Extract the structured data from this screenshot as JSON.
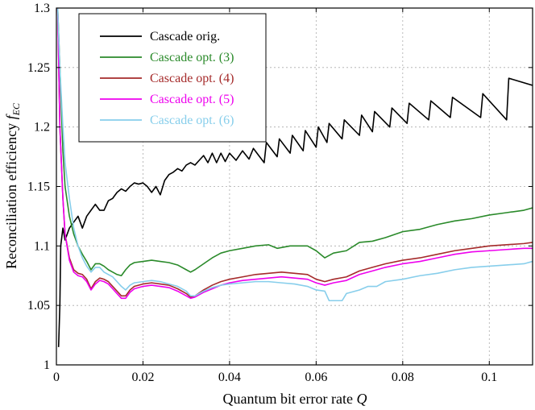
{
  "chart_data": {
    "type": "line",
    "title": "",
    "xlabel": "Quantum bit error rate",
    "xlabel_var": "Q",
    "ylabel": "Reconciliation efficiency",
    "ylabel_var": "f",
    "ylabel_sub": "EC",
    "xlim": [
      0,
      0.11
    ],
    "ylim": [
      1,
      1.3
    ],
    "xticks": [
      0,
      0.02,
      0.04,
      0.06,
      0.08,
      0.1
    ],
    "xtick_labels": [
      "0",
      "0.02",
      "0.04",
      "0.06",
      "0.08",
      "0.1"
    ],
    "yticks": [
      1,
      1.05,
      1.1,
      1.15,
      1.2,
      1.25,
      1.3
    ],
    "ytick_labels": [
      "1",
      "1.05",
      "1.1",
      "1.15",
      "1.2",
      "1.25",
      "1.3"
    ],
    "grid": true,
    "legend_position": "top-left",
    "series": [
      {
        "name": "Cascade orig.",
        "color": "#000000",
        "points": [
          [
            0.0005,
            1.015
          ],
          [
            0.0008,
            1.05
          ],
          [
            0.001,
            1.1
          ],
          [
            0.0015,
            1.115
          ],
          [
            0.002,
            1.105
          ],
          [
            0.003,
            1.115
          ],
          [
            0.004,
            1.12
          ],
          [
            0.005,
            1.125
          ],
          [
            0.006,
            1.115
          ],
          [
            0.007,
            1.125
          ],
          [
            0.008,
            1.13
          ],
          [
            0.009,
            1.135
          ],
          [
            0.01,
            1.13
          ],
          [
            0.011,
            1.13
          ],
          [
            0.012,
            1.138
          ],
          [
            0.013,
            1.14
          ],
          [
            0.014,
            1.145
          ],
          [
            0.015,
            1.148
          ],
          [
            0.016,
            1.146
          ],
          [
            0.017,
            1.15
          ],
          [
            0.018,
            1.153
          ],
          [
            0.019,
            1.152
          ],
          [
            0.02,
            1.153
          ],
          [
            0.021,
            1.15
          ],
          [
            0.022,
            1.145
          ],
          [
            0.023,
            1.15
          ],
          [
            0.024,
            1.143
          ],
          [
            0.025,
            1.155
          ],
          [
            0.026,
            1.16
          ],
          [
            0.027,
            1.162
          ],
          [
            0.028,
            1.165
          ],
          [
            0.029,
            1.163
          ],
          [
            0.03,
            1.168
          ],
          [
            0.031,
            1.17
          ],
          [
            0.032,
            1.168
          ],
          [
            0.033,
            1.172
          ],
          [
            0.034,
            1.176
          ],
          [
            0.035,
            1.17
          ],
          [
            0.036,
            1.178
          ],
          [
            0.037,
            1.17
          ],
          [
            0.038,
            1.178
          ],
          [
            0.039,
            1.171
          ],
          [
            0.04,
            1.178
          ],
          [
            0.0415,
            1.172
          ],
          [
            0.043,
            1.18
          ],
          [
            0.0445,
            1.173
          ],
          [
            0.0455,
            1.182
          ],
          [
            0.048,
            1.17
          ],
          [
            0.0485,
            1.187
          ],
          [
            0.051,
            1.175
          ],
          [
            0.0515,
            1.19
          ],
          [
            0.054,
            1.178
          ],
          [
            0.0545,
            1.193
          ],
          [
            0.057,
            1.18
          ],
          [
            0.0575,
            1.197
          ],
          [
            0.06,
            1.183
          ],
          [
            0.0605,
            1.2
          ],
          [
            0.0625,
            1.187
          ],
          [
            0.063,
            1.203
          ],
          [
            0.066,
            1.19
          ],
          [
            0.0665,
            1.206
          ],
          [
            0.07,
            1.193
          ],
          [
            0.0705,
            1.21
          ],
          [
            0.073,
            1.196
          ],
          [
            0.0735,
            1.213
          ],
          [
            0.077,
            1.2
          ],
          [
            0.0775,
            1.216
          ],
          [
            0.081,
            1.203
          ],
          [
            0.0815,
            1.22
          ],
          [
            0.086,
            1.206
          ],
          [
            0.0865,
            1.222
          ],
          [
            0.091,
            1.208
          ],
          [
            0.0915,
            1.225
          ],
          [
            0.098,
            1.208
          ],
          [
            0.0985,
            1.228
          ],
          [
            0.104,
            1.206
          ],
          [
            0.1045,
            1.241
          ],
          [
            0.11,
            1.235
          ]
        ]
      },
      {
        "name": "Cascade opt. (3)",
        "color": "#2a8a2a",
        "points": [
          [
            0.0003,
            1.3
          ],
          [
            0.0008,
            1.25
          ],
          [
            0.0015,
            1.18
          ],
          [
            0.002,
            1.15
          ],
          [
            0.003,
            1.125
          ],
          [
            0.004,
            1.11
          ],
          [
            0.005,
            1.1
          ],
          [
            0.006,
            1.093
          ],
          [
            0.007,
            1.087
          ],
          [
            0.008,
            1.08
          ],
          [
            0.009,
            1.085
          ],
          [
            0.01,
            1.085
          ],
          [
            0.011,
            1.083
          ],
          [
            0.012,
            1.08
          ],
          [
            0.013,
            1.078
          ],
          [
            0.014,
            1.076
          ],
          [
            0.015,
            1.075
          ],
          [
            0.016,
            1.08
          ],
          [
            0.017,
            1.084
          ],
          [
            0.018,
            1.086
          ],
          [
            0.02,
            1.087
          ],
          [
            0.022,
            1.088
          ],
          [
            0.024,
            1.087
          ],
          [
            0.026,
            1.086
          ],
          [
            0.028,
            1.084
          ],
          [
            0.03,
            1.08
          ],
          [
            0.031,
            1.078
          ],
          [
            0.032,
            1.08
          ],
          [
            0.034,
            1.085
          ],
          [
            0.036,
            1.09
          ],
          [
            0.038,
            1.094
          ],
          [
            0.04,
            1.096
          ],
          [
            0.043,
            1.098
          ],
          [
            0.046,
            1.1
          ],
          [
            0.049,
            1.101
          ],
          [
            0.051,
            1.098
          ],
          [
            0.054,
            1.1
          ],
          [
            0.058,
            1.1
          ],
          [
            0.06,
            1.096
          ],
          [
            0.062,
            1.09
          ],
          [
            0.064,
            1.094
          ],
          [
            0.067,
            1.096
          ],
          [
            0.07,
            1.103
          ],
          [
            0.073,
            1.104
          ],
          [
            0.076,
            1.107
          ],
          [
            0.08,
            1.112
          ],
          [
            0.084,
            1.114
          ],
          [
            0.088,
            1.118
          ],
          [
            0.092,
            1.121
          ],
          [
            0.096,
            1.123
          ],
          [
            0.1,
            1.126
          ],
          [
            0.104,
            1.128
          ],
          [
            0.108,
            1.13
          ],
          [
            0.11,
            1.132
          ]
        ]
      },
      {
        "name": "Cascade opt. (4)",
        "color": "#a52a2a",
        "points": [
          [
            0.0003,
            1.3
          ],
          [
            0.0008,
            1.2
          ],
          [
            0.0015,
            1.14
          ],
          [
            0.002,
            1.11
          ],
          [
            0.003,
            1.09
          ],
          [
            0.004,
            1.08
          ],
          [
            0.005,
            1.077
          ],
          [
            0.006,
            1.076
          ],
          [
            0.007,
            1.072
          ],
          [
            0.008,
            1.064
          ],
          [
            0.009,
            1.07
          ],
          [
            0.01,
            1.073
          ],
          [
            0.011,
            1.072
          ],
          [
            0.012,
            1.07
          ],
          [
            0.013,
            1.066
          ],
          [
            0.014,
            1.062
          ],
          [
            0.015,
            1.058
          ],
          [
            0.016,
            1.058
          ],
          [
            0.017,
            1.063
          ],
          [
            0.018,
            1.066
          ],
          [
            0.02,
            1.068
          ],
          [
            0.022,
            1.069
          ],
          [
            0.024,
            1.068
          ],
          [
            0.026,
            1.067
          ],
          [
            0.028,
            1.064
          ],
          [
            0.03,
            1.06
          ],
          [
            0.031,
            1.057
          ],
          [
            0.032,
            1.058
          ],
          [
            0.034,
            1.063
          ],
          [
            0.036,
            1.067
          ],
          [
            0.038,
            1.07
          ],
          [
            0.04,
            1.072
          ],
          [
            0.043,
            1.074
          ],
          [
            0.046,
            1.076
          ],
          [
            0.049,
            1.077
          ],
          [
            0.052,
            1.078
          ],
          [
            0.055,
            1.077
          ],
          [
            0.058,
            1.076
          ],
          [
            0.06,
            1.072
          ],
          [
            0.062,
            1.07
          ],
          [
            0.064,
            1.072
          ],
          [
            0.067,
            1.074
          ],
          [
            0.07,
            1.079
          ],
          [
            0.073,
            1.082
          ],
          [
            0.076,
            1.085
          ],
          [
            0.08,
            1.088
          ],
          [
            0.084,
            1.09
          ],
          [
            0.088,
            1.093
          ],
          [
            0.092,
            1.096
          ],
          [
            0.096,
            1.098
          ],
          [
            0.1,
            1.1
          ],
          [
            0.104,
            1.101
          ],
          [
            0.108,
            1.102
          ],
          [
            0.11,
            1.103
          ]
        ]
      },
      {
        "name": "Cascade opt. (5)",
        "color": "#ee00ee",
        "points": [
          [
            0.0003,
            1.3
          ],
          [
            0.0008,
            1.2
          ],
          [
            0.0015,
            1.14
          ],
          [
            0.002,
            1.11
          ],
          [
            0.003,
            1.088
          ],
          [
            0.004,
            1.078
          ],
          [
            0.005,
            1.075
          ],
          [
            0.006,
            1.074
          ],
          [
            0.007,
            1.07
          ],
          [
            0.008,
            1.063
          ],
          [
            0.009,
            1.068
          ],
          [
            0.01,
            1.071
          ],
          [
            0.011,
            1.07
          ],
          [
            0.012,
            1.068
          ],
          [
            0.013,
            1.064
          ],
          [
            0.014,
            1.06
          ],
          [
            0.015,
            1.056
          ],
          [
            0.016,
            1.056
          ],
          [
            0.017,
            1.061
          ],
          [
            0.018,
            1.064
          ],
          [
            0.02,
            1.066
          ],
          [
            0.022,
            1.067
          ],
          [
            0.024,
            1.066
          ],
          [
            0.026,
            1.065
          ],
          [
            0.028,
            1.062
          ],
          [
            0.03,
            1.058
          ],
          [
            0.031,
            1.056
          ],
          [
            0.032,
            1.057
          ],
          [
            0.034,
            1.061
          ],
          [
            0.036,
            1.064
          ],
          [
            0.038,
            1.067
          ],
          [
            0.04,
            1.069
          ],
          [
            0.043,
            1.071
          ],
          [
            0.046,
            1.072
          ],
          [
            0.049,
            1.073
          ],
          [
            0.052,
            1.074
          ],
          [
            0.055,
            1.073
          ],
          [
            0.058,
            1.072
          ],
          [
            0.06,
            1.069
          ],
          [
            0.062,
            1.067
          ],
          [
            0.064,
            1.069
          ],
          [
            0.067,
            1.071
          ],
          [
            0.07,
            1.076
          ],
          [
            0.073,
            1.079
          ],
          [
            0.076,
            1.082
          ],
          [
            0.08,
            1.085
          ],
          [
            0.084,
            1.087
          ],
          [
            0.088,
            1.09
          ],
          [
            0.092,
            1.093
          ],
          [
            0.096,
            1.095
          ],
          [
            0.1,
            1.096
          ],
          [
            0.104,
            1.097
          ],
          [
            0.108,
            1.098
          ],
          [
            0.11,
            1.098
          ]
        ]
      },
      {
        "name": "Cascade opt. (6)",
        "color": "#87ceeb",
        "points": [
          [
            0.0003,
            1.3
          ],
          [
            0.0008,
            1.25
          ],
          [
            0.0015,
            1.2
          ],
          [
            0.002,
            1.17
          ],
          [
            0.003,
            1.14
          ],
          [
            0.004,
            1.115
          ],
          [
            0.005,
            1.1
          ],
          [
            0.006,
            1.09
          ],
          [
            0.007,
            1.083
          ],
          [
            0.008,
            1.078
          ],
          [
            0.009,
            1.082
          ],
          [
            0.01,
            1.082
          ],
          [
            0.011,
            1.078
          ],
          [
            0.012,
            1.076
          ],
          [
            0.013,
            1.074
          ],
          [
            0.014,
            1.07
          ],
          [
            0.015,
            1.066
          ],
          [
            0.016,
            1.063
          ],
          [
            0.017,
            1.067
          ],
          [
            0.018,
            1.069
          ],
          [
            0.02,
            1.07
          ],
          [
            0.022,
            1.071
          ],
          [
            0.024,
            1.07
          ],
          [
            0.026,
            1.068
          ],
          [
            0.028,
            1.066
          ],
          [
            0.03,
            1.062
          ],
          [
            0.031,
            1.058
          ],
          [
            0.032,
            1.058
          ],
          [
            0.034,
            1.062
          ],
          [
            0.036,
            1.065
          ],
          [
            0.038,
            1.067
          ],
          [
            0.04,
            1.068
          ],
          [
            0.043,
            1.069
          ],
          [
            0.046,
            1.07
          ],
          [
            0.049,
            1.07
          ],
          [
            0.052,
            1.069
          ],
          [
            0.055,
            1.068
          ],
          [
            0.058,
            1.066
          ],
          [
            0.06,
            1.063
          ],
          [
            0.062,
            1.062
          ],
          [
            0.063,
            1.054
          ],
          [
            0.066,
            1.054
          ],
          [
            0.067,
            1.06
          ],
          [
            0.07,
            1.063
          ],
          [
            0.072,
            1.066
          ],
          [
            0.074,
            1.066
          ],
          [
            0.076,
            1.07
          ],
          [
            0.08,
            1.072
          ],
          [
            0.084,
            1.075
          ],
          [
            0.088,
            1.077
          ],
          [
            0.092,
            1.08
          ],
          [
            0.096,
            1.082
          ],
          [
            0.1,
            1.083
          ],
          [
            0.104,
            1.084
          ],
          [
            0.108,
            1.085
          ],
          [
            0.11,
            1.087
          ]
        ]
      }
    ]
  }
}
